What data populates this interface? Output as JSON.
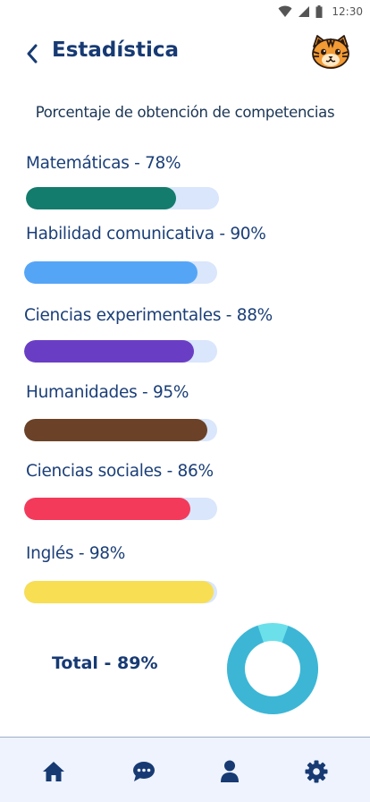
{
  "status_bar": {
    "time": "12:30"
  },
  "header": {
    "title": "Estadística"
  },
  "subtitle": "Porcentaje de obtención de competencias",
  "competencies": [
    {
      "label": "Matemáticas - 78%",
      "value": 0.78,
      "color": "#137c6d"
    },
    {
      "label": "Habilidad comunicativa - 90%",
      "value": 0.9,
      "color": "#55a5f7"
    },
    {
      "label": "Ciencias experimentales - 88%",
      "value": 0.88,
      "color": "#6a3ec4"
    },
    {
      "label": "Humanidades - 95%",
      "value": 0.95,
      "color": "#6b4228"
    },
    {
      "label": "Ciencias sociales - 86%",
      "value": 0.86,
      "color": "#f43a5b"
    },
    {
      "label": "Inglés - 98%",
      "value": 0.98,
      "color": "#f8de52"
    }
  ],
  "total": {
    "label": "Total - 89%",
    "value": 0.89,
    "color": "#3db6d6",
    "highlight_color": "#6be0ea"
  },
  "track_color": "#d9e6fb",
  "nav": {
    "items": [
      {
        "icon": "home-icon"
      },
      {
        "icon": "chat-icon"
      },
      {
        "icon": "user-icon"
      },
      {
        "icon": "gear-icon"
      }
    ]
  }
}
